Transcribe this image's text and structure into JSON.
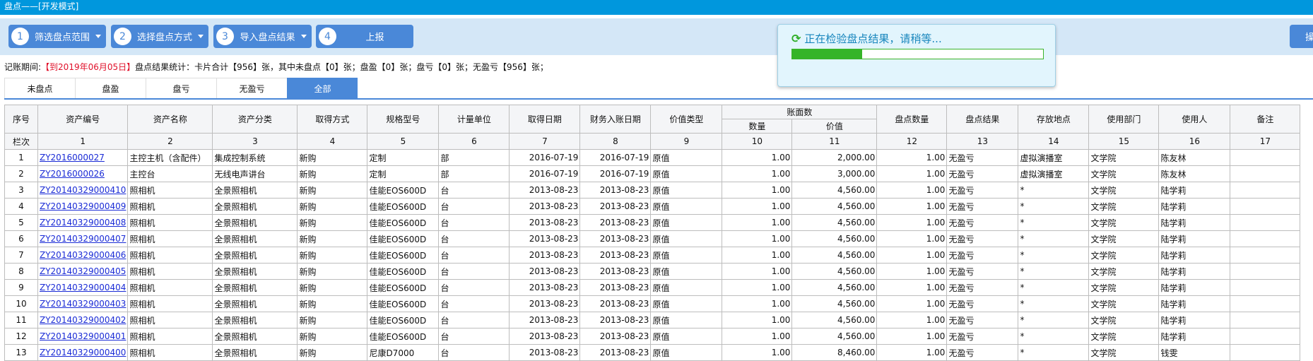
{
  "window": {
    "title": "盘点——[开发模式]"
  },
  "toolbar": {
    "steps": [
      {
        "num": "1",
        "label": "筛选盘点范围",
        "dropdown": true
      },
      {
        "num": "2",
        "label": "选择盘点方式",
        "dropdown": true
      },
      {
        "num": "3",
        "label": "导入盘点结果",
        "dropdown": true
      },
      {
        "num": "4",
        "label": "上报",
        "dropdown": false
      }
    ],
    "right_button": "操"
  },
  "info": {
    "period_label": "记账期间:",
    "period_value": "【到2019年06月05日】",
    "stats": "盘点结果统计：卡片合计【956】张，其中未盘点【0】张；盘盈【0】张；盘亏【0】张；无盈亏【956】张；"
  },
  "tabs": [
    {
      "label": "未盘点"
    },
    {
      "label": "盘盈"
    },
    {
      "label": "盘亏"
    },
    {
      "label": "无盈亏"
    },
    {
      "label": "全部",
      "active": true
    }
  ],
  "table": {
    "headers": [
      "序号",
      "资产编号",
      "资产名称",
      "资产分类",
      "取得方式",
      "规格型号",
      "计量单位",
      "取得日期",
      "财务入账日期",
      "价值类型",
      "账面数",
      "盘点数量",
      "盘点结果",
      "存放地点",
      "使用部门",
      "使用人",
      "备注"
    ],
    "sub_headers": [
      "数量",
      "价值"
    ],
    "col_index_label": "栏次",
    "col_numbers": [
      "1",
      "2",
      "3",
      "4",
      "5",
      "6",
      "7",
      "8",
      "9",
      "10",
      "11",
      "12",
      "13",
      "14",
      "15",
      "16",
      "17"
    ],
    "rows": [
      [
        "1",
        "ZY2016000027",
        "主控主机（含配件）",
        "集成控制系统",
        "新购",
        "定制",
        "部",
        "2016-07-19",
        "2016-07-19",
        "原值",
        "1.00",
        "2,000.00",
        "1.00",
        "无盈亏",
        "虚拟演播室",
        "文学院",
        "陈友林",
        ""
      ],
      [
        "2",
        "ZY2016000026",
        "主控台",
        "无线电声讲台",
        "新购",
        "定制",
        "部",
        "2016-07-19",
        "2016-07-19",
        "原值",
        "1.00",
        "3,000.00",
        "1.00",
        "无盈亏",
        "虚拟演播室",
        "文学院",
        "陈友林",
        ""
      ],
      [
        "3",
        "ZY20140329000410",
        "照相机",
        "全景照相机",
        "新购",
        "佳能EOS600D",
        "台",
        "2013-08-23",
        "2013-08-23",
        "原值",
        "1.00",
        "4,560.00",
        "1.00",
        "无盈亏",
        "*",
        "文学院",
        "陆学莉",
        ""
      ],
      [
        "4",
        "ZY20140329000409",
        "照相机",
        "全景照相机",
        "新购",
        "佳能EOS600D",
        "台",
        "2013-08-23",
        "2013-08-23",
        "原值",
        "1.00",
        "4,560.00",
        "1.00",
        "无盈亏",
        "*",
        "文学院",
        "陆学莉",
        ""
      ],
      [
        "5",
        "ZY20140329000408",
        "照相机",
        "全景照相机",
        "新购",
        "佳能EOS600D",
        "台",
        "2013-08-23",
        "2013-08-23",
        "原值",
        "1.00",
        "4,560.00",
        "1.00",
        "无盈亏",
        "*",
        "文学院",
        "陆学莉",
        ""
      ],
      [
        "6",
        "ZY20140329000407",
        "照相机",
        "全景照相机",
        "新购",
        "佳能EOS600D",
        "台",
        "2013-08-23",
        "2013-08-23",
        "原值",
        "1.00",
        "4,560.00",
        "1.00",
        "无盈亏",
        "*",
        "文学院",
        "陆学莉",
        ""
      ],
      [
        "7",
        "ZY20140329000406",
        "照相机",
        "全景照相机",
        "新购",
        "佳能EOS600D",
        "台",
        "2013-08-23",
        "2013-08-23",
        "原值",
        "1.00",
        "4,560.00",
        "1.00",
        "无盈亏",
        "*",
        "文学院",
        "陆学莉",
        ""
      ],
      [
        "8",
        "ZY20140329000405",
        "照相机",
        "全景照相机",
        "新购",
        "佳能EOS600D",
        "台",
        "2013-08-23",
        "2013-08-23",
        "原值",
        "1.00",
        "4,560.00",
        "1.00",
        "无盈亏",
        "*",
        "文学院",
        "陆学莉",
        ""
      ],
      [
        "9",
        "ZY20140329000404",
        "照相机",
        "全景照相机",
        "新购",
        "佳能EOS600D",
        "台",
        "2013-08-23",
        "2013-08-23",
        "原值",
        "1.00",
        "4,560.00",
        "1.00",
        "无盈亏",
        "*",
        "文学院",
        "陆学莉",
        ""
      ],
      [
        "10",
        "ZY20140329000403",
        "照相机",
        "全景照相机",
        "新购",
        "佳能EOS600D",
        "台",
        "2013-08-23",
        "2013-08-23",
        "原值",
        "1.00",
        "4,560.00",
        "1.00",
        "无盈亏",
        "*",
        "文学院",
        "陆学莉",
        ""
      ],
      [
        "11",
        "ZY20140329000402",
        "照相机",
        "全景照相机",
        "新购",
        "佳能EOS600D",
        "台",
        "2013-08-23",
        "2013-08-23",
        "原值",
        "1.00",
        "4,560.00",
        "1.00",
        "无盈亏",
        "*",
        "文学院",
        "陆学莉",
        ""
      ],
      [
        "12",
        "ZY20140329000401",
        "照相机",
        "全景照相机",
        "新购",
        "佳能EOS600D",
        "台",
        "2013-08-23",
        "2013-08-23",
        "原值",
        "1.00",
        "4,560.00",
        "1.00",
        "无盈亏",
        "*",
        "文学院",
        "陆学莉",
        ""
      ],
      [
        "13",
        "ZY20140329000400",
        "照相机",
        "全景照相机",
        "新购",
        "尼康D7000",
        "台",
        "2013-08-23",
        "2013-08-23",
        "原值",
        "1.00",
        "8,460.00",
        "1.00",
        "无盈亏",
        "*",
        "文学院",
        "钱雯",
        ""
      ]
    ]
  },
  "dialog": {
    "message": "正在检验盘点结果，请稍等...",
    "progress": 0.28,
    "icon": "refresh-icon"
  },
  "colors": {
    "titlebar": "#0097dd",
    "accent": "#4a88d8",
    "progress": "#35b428",
    "period": "#e0102a",
    "link": "#1a2bd6"
  }
}
